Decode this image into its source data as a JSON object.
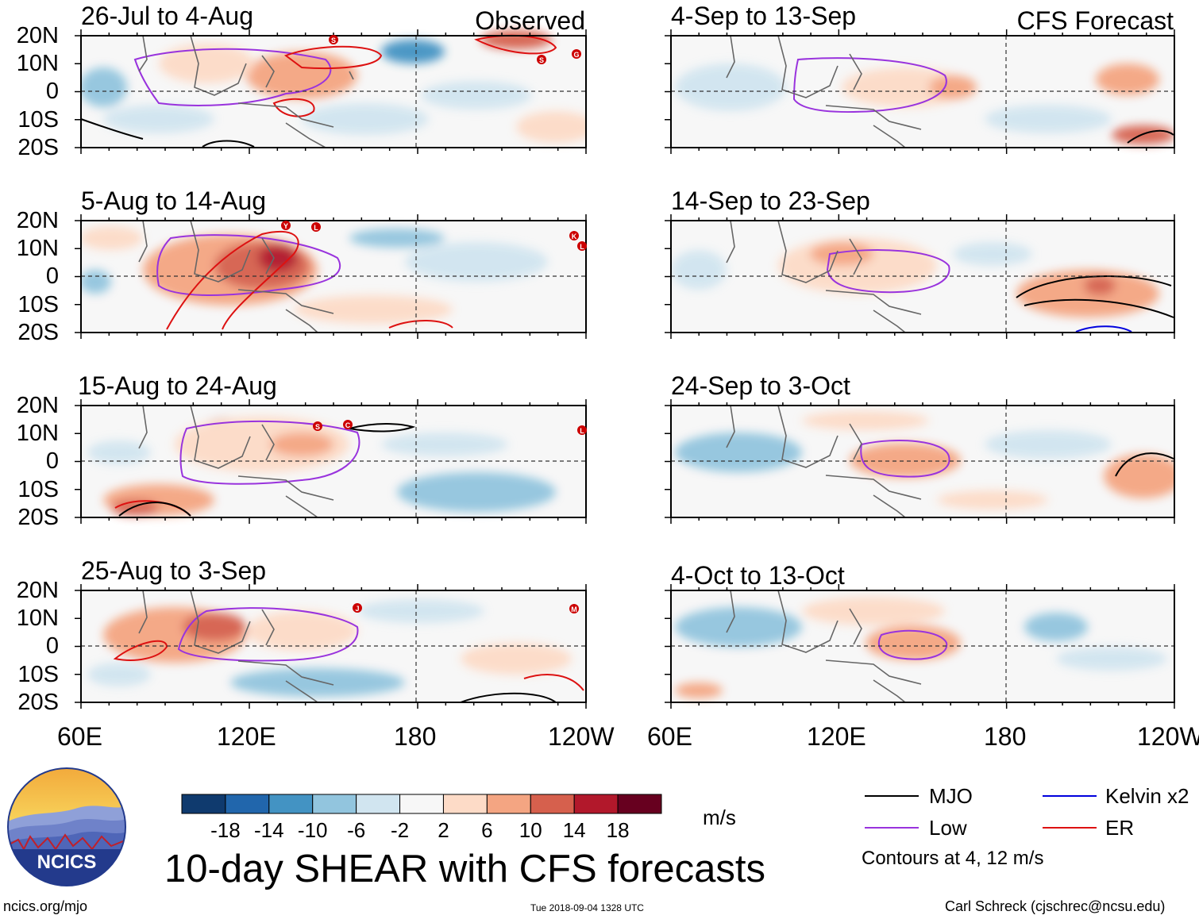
{
  "panels": [
    {
      "title": "26-Jul to 4-Aug",
      "tag": "Observed"
    },
    {
      "title": "5-Aug to 14-Aug",
      "tag": ""
    },
    {
      "title": "15-Aug to 24-Aug",
      "tag": ""
    },
    {
      "title": "25-Aug to 3-Sep",
      "tag": ""
    },
    {
      "title": "4-Sep to 13-Sep",
      "tag": "CFS Forecast"
    },
    {
      "title": "14-Sep to 23-Sep",
      "tag": ""
    },
    {
      "title": "24-Sep to 3-Oct",
      "tag": ""
    },
    {
      "title": "4-Oct to 13-Oct",
      "tag": ""
    }
  ],
  "lat_labels": [
    "20N",
    "10N",
    "0",
    "10S",
    "20S"
  ],
  "lon_labels": [
    "60E",
    "120E",
    "180",
    "120W"
  ],
  "storm_markers": {
    "p0": [
      "S",
      "S",
      "G"
    ],
    "p1": [
      "Y",
      "L",
      "K",
      "L"
    ],
    "p2": [
      "S",
      "C",
      "L"
    ],
    "p3": [
      "J",
      "M"
    ]
  },
  "colorbar": {
    "unit": "m/s",
    "ticks": [
      "-18",
      "-14",
      "-10",
      "-6",
      "-2",
      "2",
      "6",
      "10",
      "14",
      "18"
    ],
    "colors": [
      "#0f3a6e",
      "#2166ac",
      "#4393c3",
      "#92c5de",
      "#d1e5f0",
      "#f7f7f7",
      "#fddbc7",
      "#f4a582",
      "#d6604d",
      "#b2182b",
      "#67001f"
    ]
  },
  "legend": {
    "items": [
      {
        "label": "MJO",
        "color": "#000000"
      },
      {
        "label": "Kelvin x2",
        "color": "#0000dd"
      },
      {
        "label": "Low",
        "color": "#9933dd"
      },
      {
        "label": "ER",
        "color": "#dd1111"
      }
    ],
    "note": "Contours at 4, 12 m/s"
  },
  "main_title": "10-day SHEAR with CFS forecasts",
  "logo": {
    "text": "NCICS"
  },
  "footer": {
    "url": "ncics.org/mjo",
    "timestamp": "Tue 2018-09-04 1328 UTC",
    "author": "Carl Schreck (cjschrec@ncsu.edu)"
  }
}
